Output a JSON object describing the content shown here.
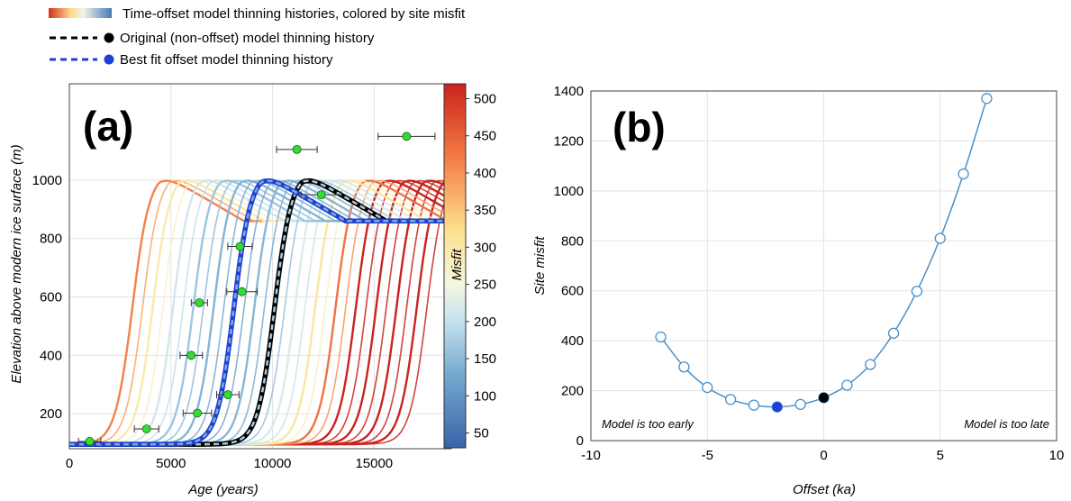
{
  "legend": {
    "item1": "Time-offset model thinning histories, colored by site misfit",
    "item2": "Original (non-offset) model thinning history",
    "item3": "Best fit offset model thinning history"
  },
  "colors": {
    "original": "#000000",
    "best_fit": "#1f3fd6",
    "sample_fill": "#33dd33",
    "line_b": "#4a90c8"
  },
  "chart_data": [
    {
      "type": "line",
      "panel_label": "(a)",
      "title": "",
      "xlabel": "Age (years)",
      "ylabel": "Elevation above modern ice surface (m)",
      "xlim": [
        0,
        18800
      ],
      "ylim": [
        80,
        1330
      ],
      "x_ticks": [
        "0",
        "5000",
        "10000",
        "15000"
      ],
      "y_ticks": [
        "200",
        "400",
        "600",
        "800",
        "1000"
      ],
      "grid": true,
      "colorbar": {
        "label": "Misfit",
        "range": [
          30,
          520
        ],
        "ticks": [
          "50",
          "100",
          "150",
          "200",
          "250",
          "300",
          "350",
          "400",
          "450",
          "500"
        ]
      },
      "original_history_midpoint_age": 10100,
      "offset_step_years": 1000,
      "series": [
        {
          "offset_ka": -7,
          "misfit": 415
        },
        {
          "offset_ka": -6,
          "misfit": 295
        },
        {
          "offset_ka": -5,
          "misfit": 213
        },
        {
          "offset_ka": -4,
          "misfit": 165
        },
        {
          "offset_ka": -3,
          "misfit": 142
        },
        {
          "offset_ka": -2,
          "misfit": 135,
          "best_fit": true
        },
        {
          "offset_ka": -1,
          "misfit": 145
        },
        {
          "offset_ka": 0,
          "misfit": 172,
          "original": true
        },
        {
          "offset_ka": 1,
          "misfit": 222
        },
        {
          "offset_ka": 2,
          "misfit": 305
        },
        {
          "offset_ka": 3,
          "misfit": 430
        },
        {
          "offset_ka": 4,
          "misfit": 598
        },
        {
          "offset_ka": 5,
          "misfit": 810
        },
        {
          "offset_ka": 6,
          "misfit": 1068
        },
        {
          "offset_ka": 7,
          "misfit": 1370
        }
      ],
      "samples": [
        {
          "age": 1000,
          "elevation": 105,
          "err": 550
        },
        {
          "age": 3800,
          "elevation": 148,
          "err": 600
        },
        {
          "age": 6300,
          "elevation": 202,
          "err": 700
        },
        {
          "age": 7800,
          "elevation": 265,
          "err": 550
        },
        {
          "age": 6000,
          "elevation": 400,
          "err": 550
        },
        {
          "age": 6400,
          "elevation": 580,
          "err": 400
        },
        {
          "age": 8500,
          "elevation": 618,
          "err": 750
        },
        {
          "age": 8400,
          "elevation": 773,
          "err": 600
        },
        {
          "age": 12400,
          "elevation": 950,
          "err": 1000
        },
        {
          "age": 11200,
          "elevation": 1105,
          "err": 1000
        },
        {
          "age": 16600,
          "elevation": 1150,
          "err": 1400
        }
      ]
    },
    {
      "type": "line",
      "panel_label": "(b)",
      "title": "",
      "xlabel": "Offset (ka)",
      "ylabel": "Site misfit",
      "xlim": [
        -10,
        10
      ],
      "ylim": [
        0,
        1400
      ],
      "x_ticks": [
        "-10",
        "-5",
        "0",
        "5",
        "10"
      ],
      "y_ticks": [
        "0",
        "200",
        "400",
        "600",
        "800",
        "1000",
        "1200",
        "1400"
      ],
      "grid": true,
      "x": [
        -7,
        -6,
        -5,
        -4,
        -3,
        -2,
        -1,
        0,
        1,
        2,
        3,
        4,
        5,
        6,
        7
      ],
      "y": [
        415,
        295,
        213,
        165,
        142,
        135,
        145,
        172,
        222,
        305,
        430,
        598,
        810,
        1068,
        1370
      ],
      "best_fit_point": {
        "x": -2,
        "y": 135
      },
      "original_point": {
        "x": 0,
        "y": 172
      },
      "annotations": [
        "Model is too early",
        "Model is too late"
      ]
    }
  ]
}
